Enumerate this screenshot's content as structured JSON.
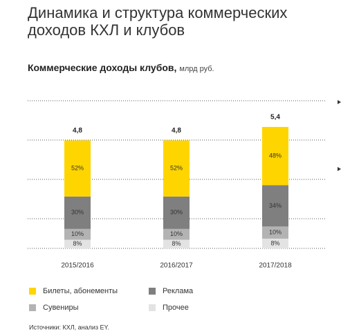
{
  "chart_data": {
    "type": "bar",
    "stacked": true,
    "title": "Динамика и структура коммерческих доходов КХЛ и клубов",
    "subtitle": "Коммерческие доходы клубов,",
    "unit": "млрд руб.",
    "categories": [
      "2015/2016",
      "2016/2017",
      "2017/2018"
    ],
    "totals": {
      "values": [
        4.8,
        4.8,
        5.4
      ],
      "value_labels": [
        "4,8",
        "4,8",
        "5,4"
      ]
    },
    "series": [
      {
        "name": "Билеты, абонементы",
        "color": "#ffd500",
        "values": [
          52,
          52,
          48
        ],
        "value_labels": [
          "52%",
          "52%",
          "48%"
        ]
      },
      {
        "name": "Реклама",
        "color": "#7f7f7f",
        "values": [
          30,
          30,
          34
        ],
        "value_labels": [
          "30%",
          "30%",
          "34%"
        ]
      },
      {
        "name": "Сувениры",
        "color": "#b3b3b3",
        "values": [
          10,
          10,
          10
        ],
        "value_labels": [
          "10%",
          "10%",
          "10%"
        ]
      },
      {
        "name": "Прочее",
        "color": "#e3e3e3",
        "values": [
          8,
          8,
          8
        ],
        "value_labels": [
          "8%",
          "8%",
          "8%"
        ]
      }
    ],
    "source": "Источники: КХЛ, анализ EY."
  }
}
